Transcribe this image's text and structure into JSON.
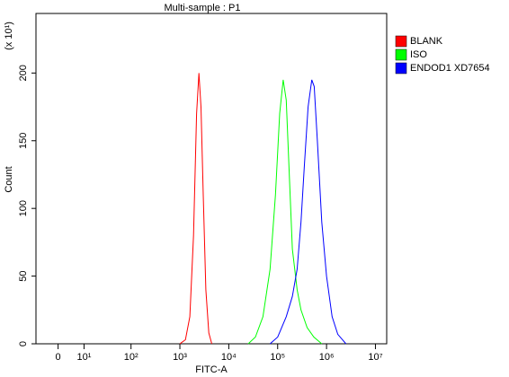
{
  "chart_data": {
    "type": "line",
    "title": "Multi-sample : P1",
    "x_label": "FITC-A",
    "y_label": "Count",
    "y_unit": "(x 10¹)",
    "xscale": "biexponential",
    "xlim": [
      -8,
      17000000
    ],
    "ylim": [
      0,
      244
    ],
    "xticks": [
      0,
      {
        "value": 10,
        "label": "10¹"
      },
      {
        "value": 100,
        "label": "10²"
      },
      {
        "value": 1000,
        "label": "10³"
      },
      {
        "value": 10000,
        "label": "10⁴"
      },
      {
        "value": 100000,
        "label": "10⁵"
      },
      {
        "value": 1000000,
        "label": "10⁶"
      },
      {
        "value": 10000000,
        "label": "10⁷"
      }
    ],
    "yticks": [
      0,
      50,
      100,
      150,
      200
    ],
    "legend": "top-right",
    "series": [
      {
        "name": "BLANK",
        "color": "#ff0000",
        "x": [
          1000,
          1300,
          1600,
          1900,
          2200,
          2450,
          2700,
          3000,
          3400,
          3900,
          4500
        ],
        "values": [
          0,
          3,
          20,
          80,
          170,
          200,
          175,
          110,
          40,
          8,
          0
        ]
      },
      {
        "name": "ISO",
        "color": "#00ff00",
        "x": [
          25000,
          35000,
          50000,
          70000,
          90000,
          110000,
          130000,
          150000,
          175000,
          200000,
          250000,
          300000,
          400000,
          550000,
          800000
        ],
        "values": [
          0,
          5,
          20,
          55,
          110,
          170,
          195,
          180,
          120,
          70,
          40,
          25,
          12,
          5,
          0
        ]
      },
      {
        "name": "ENDOD1 XD7654",
        "color": "#0000ff",
        "x": [
          70000,
          100000,
          150000,
          200000,
          250000,
          300000,
          350000,
          420000,
          500000,
          560000,
          650000,
          800000,
          1000000,
          1300000,
          1700000,
          2500000
        ],
        "values": [
          0,
          5,
          20,
          35,
          55,
          90,
          130,
          175,
          195,
          190,
          150,
          90,
          50,
          20,
          7,
          0
        ]
      }
    ]
  }
}
